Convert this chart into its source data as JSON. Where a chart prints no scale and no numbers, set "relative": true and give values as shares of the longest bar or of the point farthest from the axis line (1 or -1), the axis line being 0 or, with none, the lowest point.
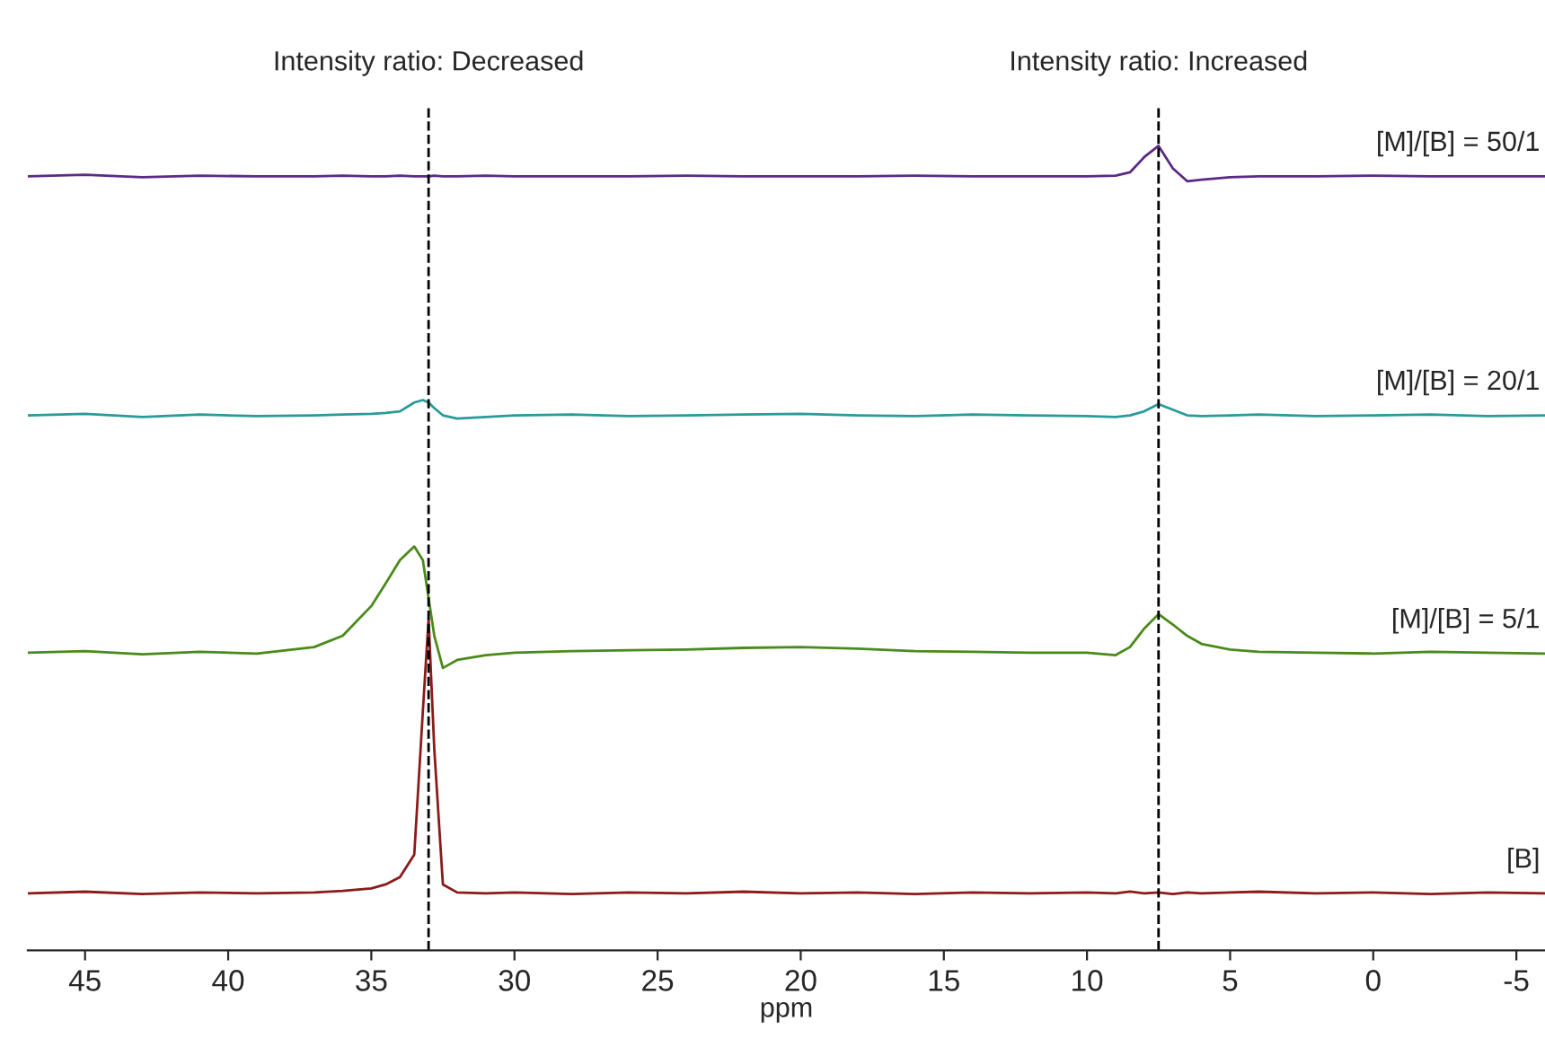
{
  "chart_data": {
    "type": "line",
    "relative": true,
    "xlabel": "ppm",
    "xlim": [
      47,
      -6
    ],
    "xticks": [
      45,
      40,
      35,
      30,
      25,
      20,
      15,
      10,
      5,
      0,
      -5
    ],
    "tick_labels": "x",
    "grid": false,
    "legend": false,
    "line_style": "solid",
    "marker": "none",
    "x": [
      47,
      45,
      43,
      41,
      39,
      37,
      36,
      35,
      34.5,
      34,
      33.5,
      33.2,
      33,
      32.8,
      32.5,
      32,
      31,
      30,
      28,
      26,
      24,
      22,
      20,
      18,
      16,
      14,
      12,
      10,
      9,
      8.5,
      8,
      7.5,
      7,
      6.5,
      6,
      5,
      4,
      2,
      0,
      -2,
      -4,
      -6
    ],
    "series": [
      {
        "name": "[M]/[B] = 50/1",
        "color": "#5b2a86",
        "values": [
          0.962,
          0.964,
          0.961,
          0.963,
          0.962,
          0.962,
          0.963,
          0.962,
          0.962,
          0.963,
          0.962,
          0.962,
          0.962,
          0.963,
          0.962,
          0.962,
          0.963,
          0.962,
          0.962,
          0.962,
          0.963,
          0.962,
          0.962,
          0.962,
          0.963,
          0.962,
          0.962,
          0.962,
          0.963,
          0.967,
          0.986,
          1.0,
          0.972,
          0.956,
          0.958,
          0.961,
          0.962,
          0.962,
          0.963,
          0.962,
          0.962,
          0.962
        ]
      },
      {
        "name": "[M]/[B] = 20/1",
        "color": "#2a9a9a",
        "values": [
          0.665,
          0.667,
          0.663,
          0.666,
          0.664,
          0.665,
          0.666,
          0.667,
          0.668,
          0.67,
          0.681,
          0.684,
          0.681,
          0.674,
          0.665,
          0.661,
          0.663,
          0.665,
          0.666,
          0.664,
          0.665,
          0.666,
          0.667,
          0.665,
          0.664,
          0.666,
          0.665,
          0.664,
          0.663,
          0.665,
          0.67,
          0.679,
          0.672,
          0.665,
          0.664,
          0.665,
          0.666,
          0.664,
          0.665,
          0.666,
          0.664,
          0.665
        ]
      },
      {
        "name": "[M]/[B] = 5/1",
        "color": "#4a8a1a",
        "values": [
          0.37,
          0.372,
          0.368,
          0.371,
          0.369,
          0.377,
          0.391,
          0.428,
          0.456,
          0.485,
          0.502,
          0.485,
          0.438,
          0.391,
          0.351,
          0.361,
          0.367,
          0.37,
          0.372,
          0.373,
          0.374,
          0.376,
          0.377,
          0.375,
          0.372,
          0.371,
          0.37,
          0.37,
          0.367,
          0.377,
          0.4,
          0.418,
          0.405,
          0.391,
          0.381,
          0.374,
          0.371,
          0.37,
          0.369,
          0.371,
          0.37,
          0.369
        ]
      },
      {
        "name": "[B]",
        "color": "#8b1a1a",
        "values": [
          0.071,
          0.073,
          0.07,
          0.072,
          0.071,
          0.072,
          0.074,
          0.077,
          0.082,
          0.091,
          0.119,
          0.297,
          0.412,
          0.25,
          0.082,
          0.072,
          0.071,
          0.072,
          0.07,
          0.072,
          0.071,
          0.073,
          0.071,
          0.072,
          0.07,
          0.072,
          0.071,
          0.072,
          0.071,
          0.073,
          0.071,
          0.072,
          0.07,
          0.072,
          0.071,
          0.072,
          0.073,
          0.071,
          0.072,
          0.07,
          0.072,
          0.071
        ]
      }
    ],
    "ref_lines": [
      {
        "axis": "x",
        "value": 33,
        "label": "Intensity ratio: Decreased",
        "color": "#000000",
        "line_style": "dashed"
      },
      {
        "axis": "x",
        "value": 7.5,
        "label": "Intensity ratio: Increased",
        "color": "#000000",
        "line_style": "dashed"
      }
    ]
  }
}
